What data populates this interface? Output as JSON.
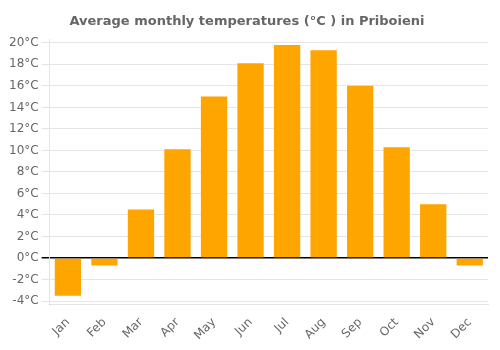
{
  "chart_data": {
    "type": "bar",
    "title": "Average monthly temperatures (°C ) in Priboieni",
    "categories": [
      "Jan",
      "Feb",
      "Mar",
      "Apr",
      "May",
      "Jun",
      "Jul",
      "Aug",
      "Sep",
      "Oct",
      "Nov",
      "Dec"
    ],
    "values": [
      -3.5,
      -0.7,
      4.5,
      10.1,
      15.0,
      18.1,
      19.8,
      19.3,
      16.0,
      10.3,
      5.0,
      -0.7
    ],
    "color": "#FFA500",
    "ylim": [
      -4.3,
      20.3
    ],
    "yticks": [
      {
        "value": -4,
        "label": "-4°C"
      },
      {
        "value": -2,
        "label": "-2°C"
      },
      {
        "value": 0,
        "label": "0°C"
      },
      {
        "value": 2,
        "label": "2°C"
      },
      {
        "value": 4,
        "label": "4°C"
      },
      {
        "value": 6,
        "label": "6°C"
      },
      {
        "value": 8,
        "label": "8°C"
      },
      {
        "value": 10,
        "label": "10°C"
      },
      {
        "value": 12,
        "label": "12°C"
      },
      {
        "value": 14,
        "label": "14°C"
      },
      {
        "value": 16,
        "label": "16°C"
      },
      {
        "value": 18,
        "label": "18°C"
      },
      {
        "value": 20,
        "label": "20°C"
      }
    ],
    "grid": true
  }
}
